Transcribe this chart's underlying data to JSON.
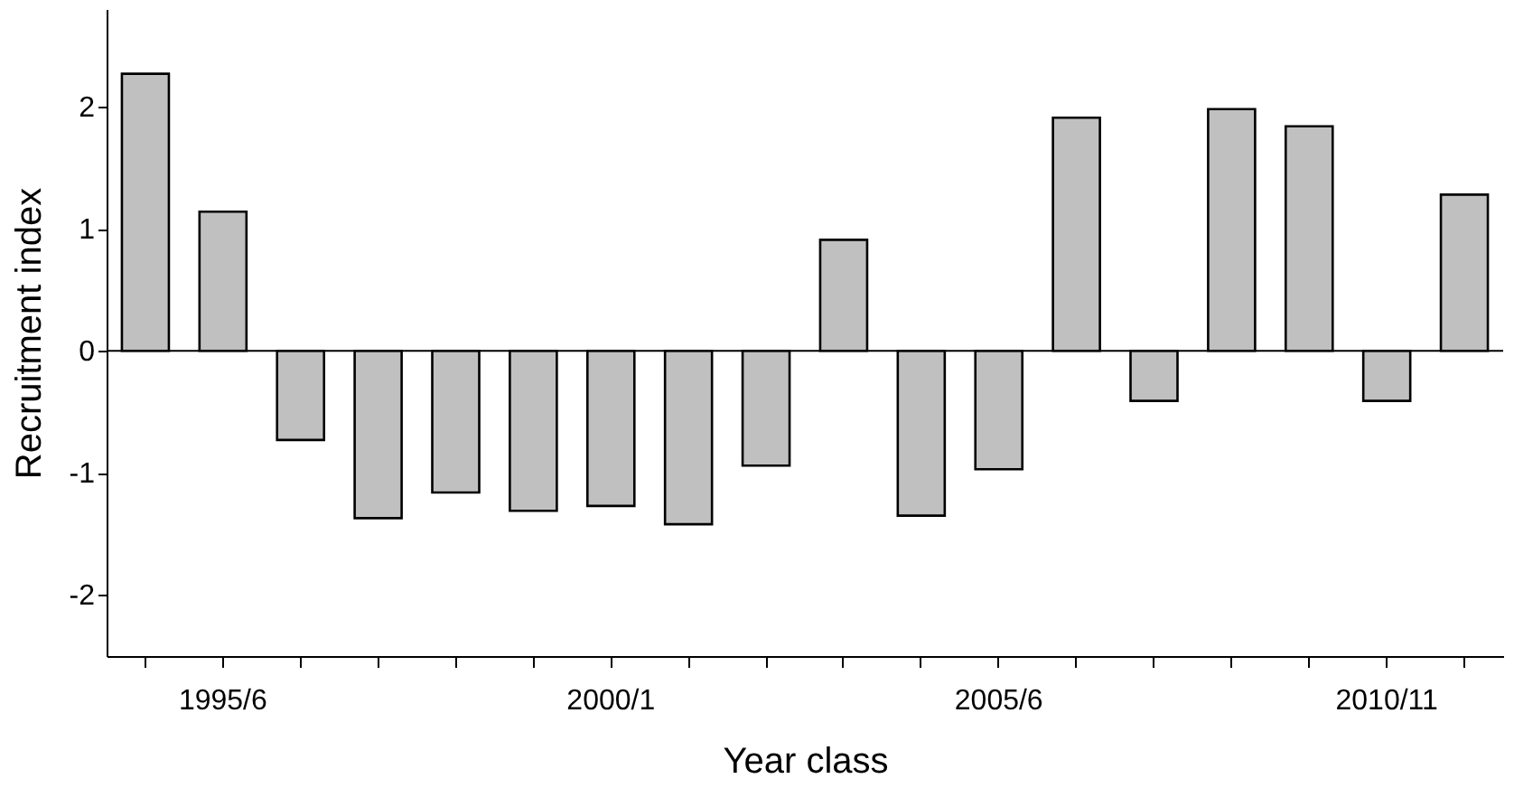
{
  "chart_data": {
    "type": "bar",
    "xlabel": "Year class",
    "ylabel": "Recruitment index",
    "categories": [
      null,
      "1995/6",
      null,
      null,
      null,
      null,
      "2000/1",
      null,
      null,
      null,
      null,
      "2005/6",
      null,
      null,
      null,
      null,
      "2010/11",
      null
    ],
    "values": [
      2.27,
      1.14,
      -0.73,
      -1.37,
      -1.16,
      -1.31,
      -1.27,
      -1.42,
      -0.94,
      0.91,
      -1.35,
      -0.97,
      1.91,
      -0.41,
      1.98,
      1.84,
      -0.41,
      1.28
    ],
    "color": "#c0c0c0",
    "ylim": [
      -2.5,
      2.8
    ],
    "yticks": [
      -2,
      -1,
      0,
      1,
      2
    ],
    "grid": false,
    "ref_lines": [
      {
        "axis": "y",
        "value": 0,
        "color": "#000000"
      }
    ]
  }
}
